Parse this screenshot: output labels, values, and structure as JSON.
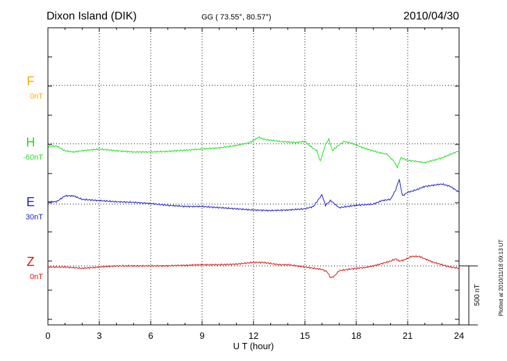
{
  "header": {
    "station": "Dixon Island (DIK)",
    "coords": "GG ( 73.55°,  80.57°)",
    "date": "2010/04/30"
  },
  "footer": {
    "plotted": "Plotted at 2010/11/18 09:13 UT"
  },
  "colors": {
    "F": "#ffaa00",
    "H": "#22dd22",
    "E": "#1a1acc",
    "Z": "#dd1111",
    "frame": "#000000"
  },
  "chart_data": {
    "type": "line",
    "xlabel": "U T (hour)",
    "xlim": [
      0,
      24
    ],
    "x_ticks": [
      0,
      3,
      6,
      9,
      12,
      15,
      18,
      21,
      24
    ],
    "x_tick_labels": [
      "0",
      "3",
      "6",
      "9",
      "12",
      "15",
      "18",
      "21",
      "24"
    ],
    "units": "nT",
    "scale_bar": {
      "value_nT": 500,
      "label": "500 nT"
    },
    "components": [
      {
        "name": "F",
        "baseline": "0nT",
        "baseline_value": 0,
        "values": []
      },
      {
        "name": "H",
        "baseline": "-60nT",
        "baseline_value": -60,
        "points": [
          [
            0,
            -20
          ],
          [
            0.5,
            -20
          ],
          [
            1.0,
            -60
          ],
          [
            1.5,
            -70
          ],
          [
            2,
            -60
          ],
          [
            3,
            -45
          ],
          [
            4,
            -60
          ],
          [
            5,
            -70
          ],
          [
            6,
            -70
          ],
          [
            7,
            -65
          ],
          [
            8,
            -55
          ],
          [
            9,
            -45
          ],
          [
            10,
            -35
          ],
          [
            11,
            -15
          ],
          [
            11.8,
            10
          ],
          [
            12.3,
            55
          ],
          [
            12.7,
            35
          ],
          [
            13.5,
            20
          ],
          [
            14.5,
            10
          ],
          [
            15.0,
            20
          ],
          [
            15.4,
            -30
          ],
          [
            15.7,
            -60
          ],
          [
            15.9,
            -150
          ],
          [
            16.0,
            -100
          ],
          [
            16.2,
            -10
          ],
          [
            16.4,
            40
          ],
          [
            16.6,
            -60
          ],
          [
            16.9,
            -20
          ],
          [
            17.3,
            20
          ],
          [
            17.8,
            0
          ],
          [
            18.5,
            -40
          ],
          [
            19.2,
            -70
          ],
          [
            19.8,
            -90
          ],
          [
            20.2,
            -150
          ],
          [
            20.4,
            -200
          ],
          [
            20.6,
            -120
          ],
          [
            21,
            -140
          ],
          [
            21.5,
            -150
          ],
          [
            22,
            -160
          ],
          [
            22.5,
            -140
          ],
          [
            23,
            -120
          ],
          [
            23.5,
            -90
          ],
          [
            24,
            -60
          ]
        ]
      },
      {
        "name": "E",
        "baseline": "30nT",
        "baseline_value": 30,
        "points": [
          [
            0,
            20
          ],
          [
            0.5,
            20
          ],
          [
            1,
            70
          ],
          [
            1.5,
            70
          ],
          [
            2,
            40
          ],
          [
            3,
            30
          ],
          [
            4,
            20
          ],
          [
            5,
            15
          ],
          [
            6,
            5
          ],
          [
            7,
            -10
          ],
          [
            8,
            -20
          ],
          [
            9,
            -20
          ],
          [
            10,
            -30
          ],
          [
            11,
            -40
          ],
          [
            12,
            -50
          ],
          [
            13,
            -55
          ],
          [
            14,
            -50
          ],
          [
            15,
            -40
          ],
          [
            15.5,
            -20
          ],
          [
            15.8,
            40
          ],
          [
            16,
            80
          ],
          [
            16.2,
            -10
          ],
          [
            16.5,
            30
          ],
          [
            17,
            -30
          ],
          [
            17.5,
            -20
          ],
          [
            18,
            -10
          ],
          [
            18.5,
            -5
          ],
          [
            19,
            0
          ],
          [
            19.5,
            30
          ],
          [
            20,
            40
          ],
          [
            20.3,
            120
          ],
          [
            20.5,
            210
          ],
          [
            20.7,
            70
          ],
          [
            21,
            100
          ],
          [
            21.5,
            120
          ],
          [
            22,
            150
          ],
          [
            22.5,
            160
          ],
          [
            23,
            170
          ],
          [
            23.5,
            150
          ],
          [
            24,
            100
          ]
        ]
      },
      {
        "name": "Z",
        "baseline": "0nT",
        "baseline_value": 0,
        "points": [
          [
            0,
            -10
          ],
          [
            1,
            -10
          ],
          [
            2,
            -20
          ],
          [
            3,
            -10
          ],
          [
            4,
            0
          ],
          [
            5,
            0
          ],
          [
            6,
            0
          ],
          [
            7,
            0
          ],
          [
            8,
            5
          ],
          [
            9,
            10
          ],
          [
            10,
            10
          ],
          [
            11,
            15
          ],
          [
            12,
            30
          ],
          [
            12.5,
            30
          ],
          [
            13,
            20
          ],
          [
            13.5,
            10
          ],
          [
            14,
            10
          ],
          [
            14.5,
            0
          ],
          [
            15,
            -10
          ],
          [
            15.5,
            -20
          ],
          [
            16,
            -30
          ],
          [
            16.3,
            -50
          ],
          [
            16.5,
            -100
          ],
          [
            16.7,
            -90
          ],
          [
            17,
            -40
          ],
          [
            17.5,
            -30
          ],
          [
            18,
            -20
          ],
          [
            18.5,
            -15
          ],
          [
            19,
            0
          ],
          [
            19.5,
            20
          ],
          [
            20,
            40
          ],
          [
            20.3,
            60
          ],
          [
            20.5,
            40
          ],
          [
            20.8,
            50
          ],
          [
            21.2,
            80
          ],
          [
            21.7,
            80
          ],
          [
            22,
            60
          ],
          [
            22.5,
            30
          ],
          [
            23,
            10
          ],
          [
            23.5,
            -10
          ],
          [
            24,
            -20
          ]
        ]
      }
    ]
  }
}
